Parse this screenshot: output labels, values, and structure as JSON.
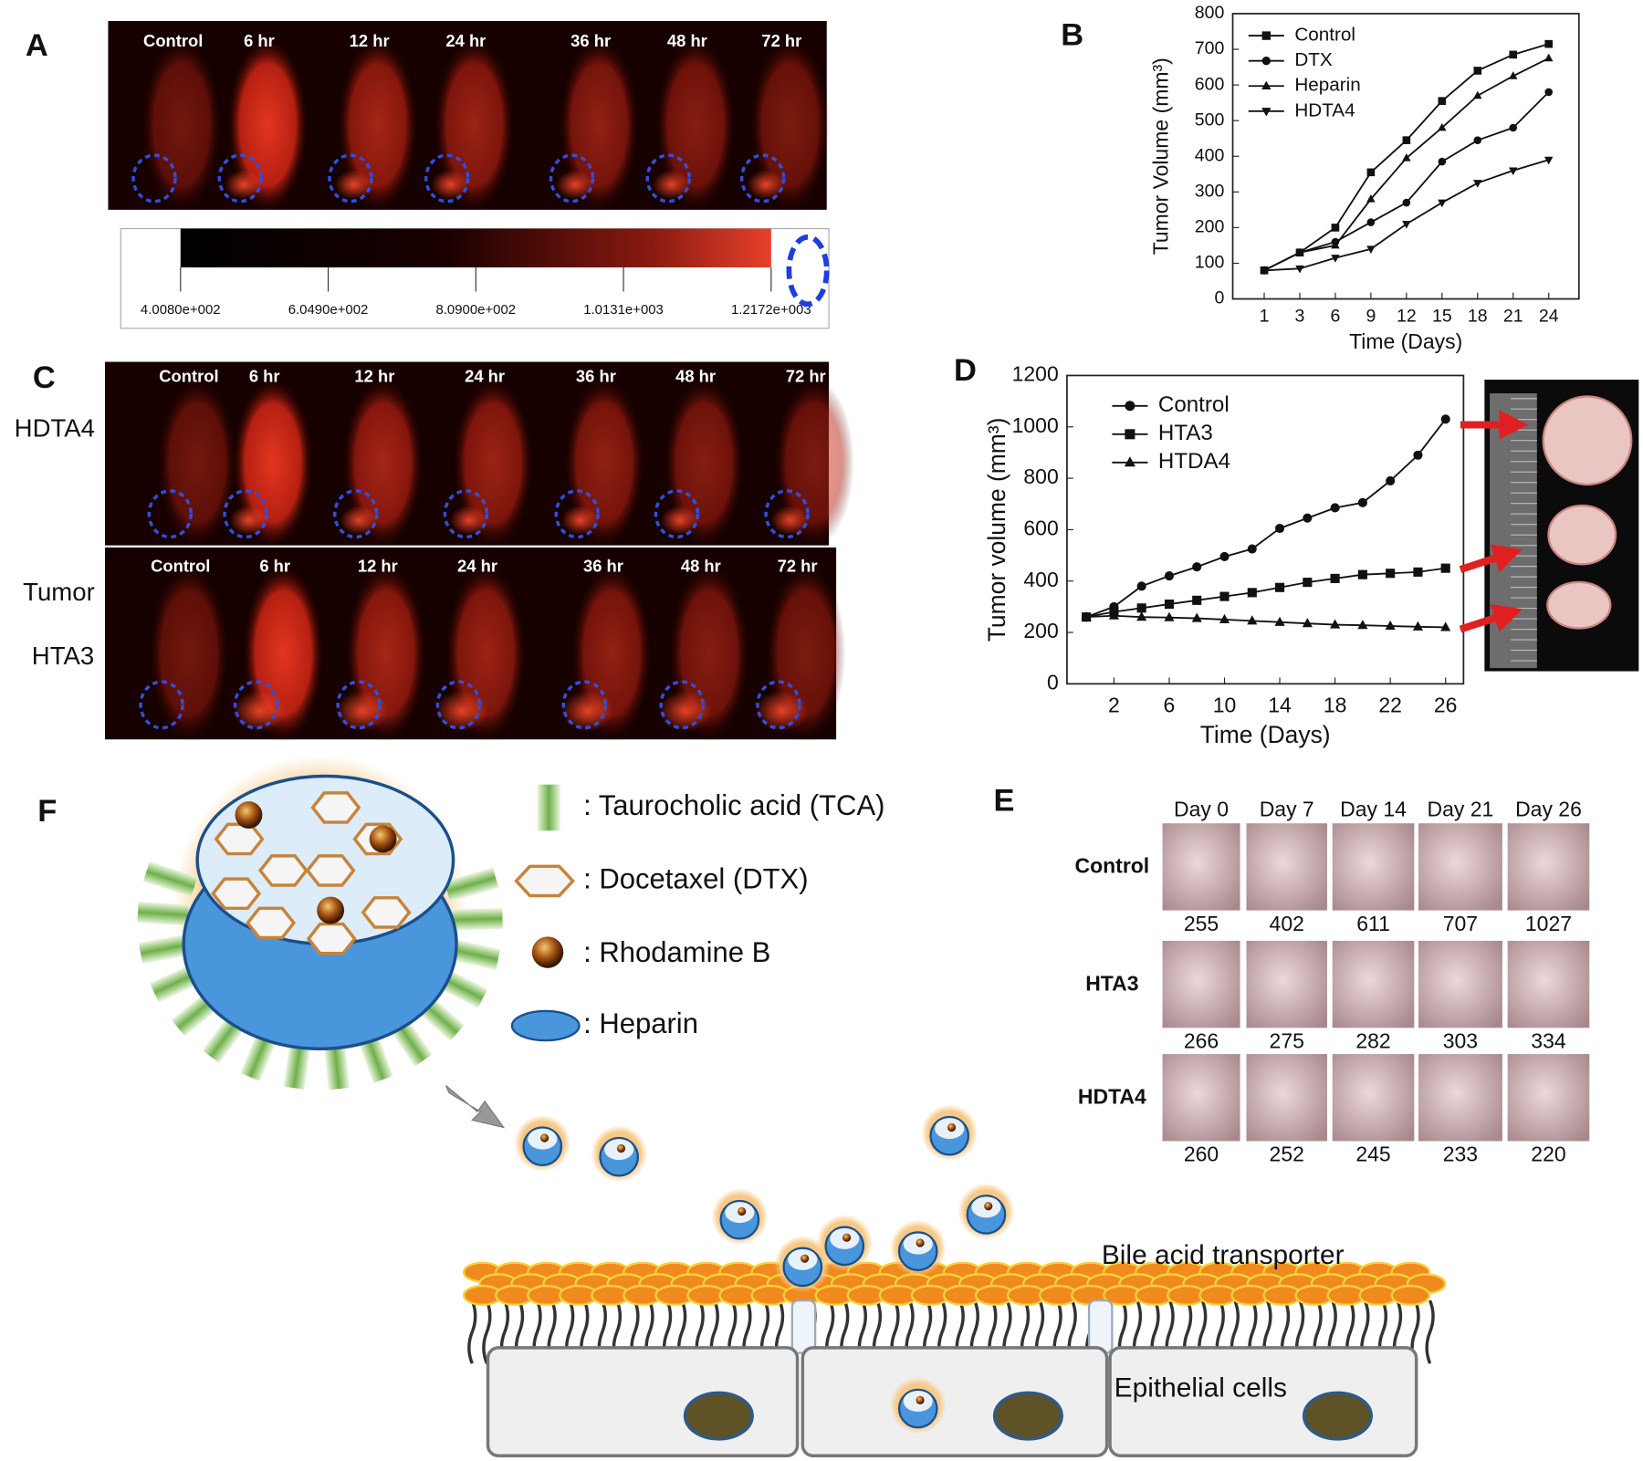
{
  "panels": {
    "A": {
      "label": "A",
      "times": [
        "Control",
        "6 hr",
        "12 hr",
        "24 hr",
        "36 hr",
        "48 hr",
        "72 hr"
      ],
      "colorbar_ticks": [
        "4.0080e+002",
        "6.0490e+002",
        "8.0900e+002",
        "1.0131e+003",
        "1.2172e+003"
      ]
    },
    "C": {
      "label": "C",
      "row_labels": [
        "HDTA4",
        "Tumor",
        "HTA3"
      ],
      "times_top": [
        "Control",
        "6 hr",
        "12 hr",
        "24 hr",
        "36 hr",
        "48 hr",
        "72 hr"
      ],
      "times_bottom": [
        "Control",
        "6 hr",
        "12 hr",
        "24 hr",
        "36 hr",
        "48 hr",
        "72 hr"
      ]
    },
    "E": {
      "label": "E",
      "days": [
        "Day 0",
        "Day 7",
        "Day 14",
        "Day 21",
        "Day 26"
      ],
      "rows": [
        {
          "name": "Control",
          "values": [
            255,
            402,
            611,
            707,
            1027
          ]
        },
        {
          "name": "HTA3",
          "values": [
            266,
            275,
            282,
            303,
            334
          ]
        },
        {
          "name": "HDTA4",
          "values": [
            260,
            252,
            245,
            233,
            220
          ]
        }
      ]
    },
    "F": {
      "label": "F",
      "legend": [
        ": Taurocholic acid (TCA)",
        ": Docetaxel (DTX)",
        ": Rhodamine B",
        ": Heparin"
      ],
      "transporter_label": "Bile acid transporter",
      "cells_label": "Epithelial cells"
    }
  },
  "chart_data": [
    {
      "type": "line",
      "label": "B",
      "x_label": "Time (Days)",
      "y_label": "Tumor Volume (mm³)",
      "categories": [
        "1",
        "3",
        "6",
        "9",
        "12",
        "15",
        "18",
        "21",
        "24"
      ],
      "ylim": [
        0,
        800
      ],
      "yticks": [
        0,
        100,
        200,
        300,
        400,
        500,
        600,
        700,
        800
      ],
      "series": [
        {
          "name": "Control",
          "color": "#111111",
          "marker": "square",
          "values": [
            80,
            130,
            200,
            355,
            445,
            555,
            640,
            685,
            715
          ]
        },
        {
          "name": "DTX",
          "color": "#111111",
          "marker": "circle",
          "values": [
            80,
            130,
            160,
            215,
            270,
            385,
            445,
            480,
            580
          ]
        },
        {
          "name": "Heparin",
          "color": "#111111",
          "marker": "triangle",
          "values": [
            80,
            130,
            150,
            280,
            395,
            480,
            570,
            625,
            675
          ]
        },
        {
          "name": "HDTA4",
          "color": "#111111",
          "marker": "triangle-down",
          "values": [
            80,
            85,
            115,
            140,
            210,
            270,
            325,
            360,
            390
          ]
        }
      ]
    },
    {
      "type": "line",
      "label": "D",
      "x_label": "Time (Days)",
      "y_label": "Tumor volume (mm³)",
      "x": [
        0,
        2,
        4,
        6,
        8,
        10,
        12,
        14,
        16,
        18,
        20,
        22,
        24,
        26
      ],
      "xlim": [
        -1.4,
        27.3
      ],
      "xticks": [
        2,
        6,
        10,
        14,
        18,
        22,
        26
      ],
      "ylim": [
        0,
        1200
      ],
      "yticks": [
        0,
        200,
        400,
        600,
        800,
        1000,
        1200
      ],
      "series": [
        {
          "name": "Control",
          "color": "#111111",
          "marker": "circle",
          "values": [
            260,
            300,
            380,
            420,
            455,
            495,
            525,
            605,
            645,
            685,
            705,
            790,
            890,
            1030
          ]
        },
        {
          "name": "HTA3",
          "color": "#111111",
          "marker": "square",
          "values": [
            260,
            280,
            295,
            310,
            325,
            340,
            355,
            375,
            395,
            410,
            425,
            430,
            435,
            450
          ]
        },
        {
          "name": "HTDA4",
          "color": "#111111",
          "marker": "triangle",
          "values": [
            260,
            265,
            260,
            258,
            255,
            250,
            245,
            240,
            235,
            230,
            228,
            225,
            222,
            220
          ]
        }
      ]
    }
  ]
}
